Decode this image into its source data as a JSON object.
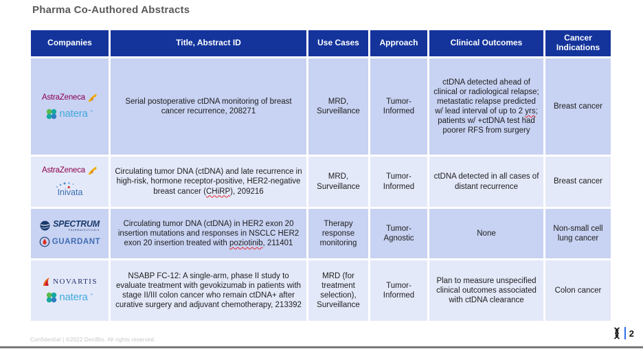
{
  "page": {
    "title": "Pharma Co-Authored Abstracts",
    "footer": "Confidential  |  ©2022 DeciBio. All rights reserved.",
    "page_number": "2"
  },
  "colors": {
    "header_bg": "#14349C",
    "row_odd_bg": "#C8D2F2",
    "row_even_bg": "#E4E9F9",
    "title_gray": "#595959",
    "page_bar_blue": "#2B6BE8",
    "squiggle_red": "#e3242b"
  },
  "logos": {
    "astrazeneca": "AstraZeneca",
    "natera": "natera",
    "natera_tm": "™",
    "inivata": "Inivata",
    "spectrum": "SPECTRUM",
    "spectrum_sub": "PHARMACEUTICALS",
    "guardant": "GUARDANT",
    "novartis": "NOVARTIS"
  },
  "table": {
    "headers": [
      "Companies",
      "Title, Abstract ID",
      "Use Cases",
      "Approach",
      "Clinical Outcomes",
      "Cancer Indications"
    ],
    "rows": [
      {
        "companies": [
          "AstraZeneca",
          "Natera"
        ],
        "title": [
          {
            "text": "Serial postoperative ctDNA monitoring of breast cancer recurrence, 208271"
          }
        ],
        "use_cases": "MRD, Surveillance",
        "approach": "Tumor-Informed",
        "outcomes": [
          {
            "text": "ctDNA detected ahead of clinical or radiological relapse; metastatic relapse predicted w/ lead interval of up to 2 "
          },
          {
            "text": "yrs",
            "misspelled": true
          },
          {
            "text": "; patients w/ +ctDNA test had poorer RFS from surgery"
          }
        ],
        "indication": "Breast cancer"
      },
      {
        "companies": [
          "AstraZeneca",
          "Inivata"
        ],
        "title": [
          {
            "text": "Circulating tumor DNA (ctDNA) and late recurrence in high-risk, hormone receptor-positive, HER2-negative breast cancer ("
          },
          {
            "text": "CHiRP",
            "misspelled": true
          },
          {
            "text": "), 209216"
          }
        ],
        "use_cases": "MRD, Surveillance",
        "approach": "Tumor-Informed",
        "outcomes": [
          {
            "text": "ctDNA detected in all cases of distant recurrence"
          }
        ],
        "indication": "Breast cancer"
      },
      {
        "companies": [
          "Spectrum Pharmaceuticals",
          "Guardant"
        ],
        "title": [
          {
            "text": "Circulating tumor DNA (ctDNA) in HER2 exon 20 insertion mutations and responses in NSCLC HER2 exon 20 insertion treated with "
          },
          {
            "text": "poziotinib",
            "misspelled": true
          },
          {
            "text": ", 211401"
          }
        ],
        "use_cases": "Therapy response monitoring",
        "approach": "Tumor-Agnostic",
        "outcomes": [
          {
            "text": "None"
          }
        ],
        "indication": "Non-small cell lung cancer"
      },
      {
        "companies": [
          "Novartis",
          "Natera"
        ],
        "title": [
          {
            "text": "NSABP FC-12: A single-arm, phase II study to evaluate treatment with gevokizumab in patients with stage II/III colon cancer who remain ctDNA+ after curative surgery and adjuvant chemotherapy, 213392"
          }
        ],
        "use_cases": "MRD (for treatment selection), Surveillance",
        "approach": "Tumor-Informed",
        "outcomes": [
          {
            "text": "Plan to measure unspecified clinical outcomes associated with ctDNA clearance"
          }
        ],
        "indication": "Colon cancer"
      }
    ]
  }
}
